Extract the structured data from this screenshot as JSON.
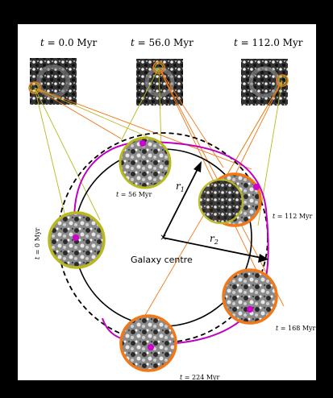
{
  "header": {
    "panels": [
      {
        "var": "t",
        "value": "0.0 Myr"
      },
      {
        "var": "t",
        "value": "56.0 Myr"
      },
      {
        "var": "t",
        "value": "112.0 Myr"
      }
    ]
  },
  "zooms": [
    {
      "var": "t",
      "value": "56 Myr"
    },
    {
      "var": "t",
      "value": "112 Myr"
    },
    {
      "var": "t",
      "value": "168 Myr"
    },
    {
      "var": "t",
      "value": "224 Myr"
    },
    {
      "var": "t",
      "value": "0 Myr"
    }
  ],
  "centre_label": "Galaxy centre",
  "radii": [
    {
      "sym": "r",
      "sub": "1"
    },
    {
      "sym": "r",
      "sub": "2"
    }
  ],
  "colors": {
    "orbit": "#c000c0",
    "olive": "#b8b820",
    "orange": "#f07818",
    "marker": "#d000d0"
  }
}
